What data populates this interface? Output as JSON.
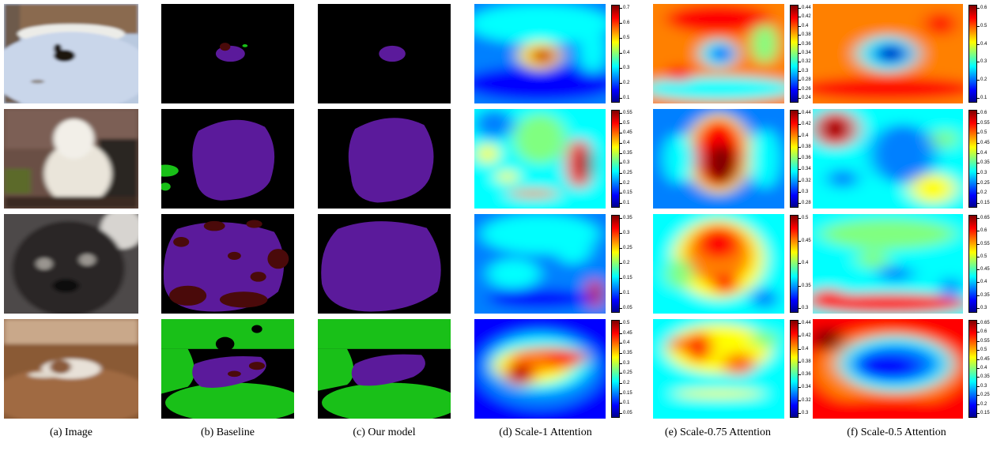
{
  "figure": {
    "captions": [
      "(a) Image",
      "(b) Baseline",
      "(c) Our model",
      "(d) Scale-1 Attention",
      "(e) Scale-0.75 Attention",
      "(f) Scale-0.5 Attention"
    ],
    "colorbar_ticks": [
      [
        [
          "0.7",
          "0.6",
          "0.5",
          "0.4",
          "0.3",
          "0.2",
          "0.1"
        ],
        [
          "0.44",
          "0.42",
          "0.4",
          "0.38",
          "0.36",
          "0.34",
          "0.32",
          "0.3",
          "0.28",
          "0.26",
          "0.24"
        ],
        [
          "0.6",
          "0.5",
          "0.4",
          "0.3",
          "0.2",
          "0.1"
        ]
      ],
      [
        [
          "0.55",
          "0.5",
          "0.45",
          "0.4",
          "0.35",
          "0.3",
          "0.25",
          "0.2",
          "0.15",
          "0.1"
        ],
        [
          "0.44",
          "0.42",
          "0.4",
          "0.38",
          "0.36",
          "0.34",
          "0.32",
          "0.3",
          "0.28"
        ],
        [
          "0.6",
          "0.55",
          "0.5",
          "0.45",
          "0.4",
          "0.35",
          "0.3",
          "0.25",
          "0.2",
          "0.15"
        ]
      ],
      [
        [
          "0.35",
          "0.3",
          "0.25",
          "0.2",
          "0.15",
          "0.1",
          "0.05"
        ],
        [
          "0.5",
          "0.45",
          "0.4",
          "0.35",
          "0.3"
        ],
        [
          "0.65",
          "0.6",
          "0.55",
          "0.5",
          "0.45",
          "0.4",
          "0.35",
          "0.3"
        ]
      ],
      [
        [
          "0.5",
          "0.45",
          "0.4",
          "0.35",
          "0.3",
          "0.25",
          "0.2",
          "0.15",
          "0.1",
          "0.05"
        ],
        [
          "0.44",
          "0.42",
          "0.4",
          "0.38",
          "0.36",
          "0.34",
          "0.32",
          "0.3"
        ],
        [
          "0.65",
          "0.6",
          "0.55",
          "0.5",
          "0.45",
          "0.4",
          "0.35",
          "0.3",
          "0.25",
          "0.2",
          "0.15"
        ]
      ]
    ],
    "segmentation_colors": {
      "background": "#000000",
      "dog": "#5b1a9b",
      "misclassified": "#4a0a0a",
      "sofa": "#19c018"
    },
    "colormap": "jet"
  }
}
